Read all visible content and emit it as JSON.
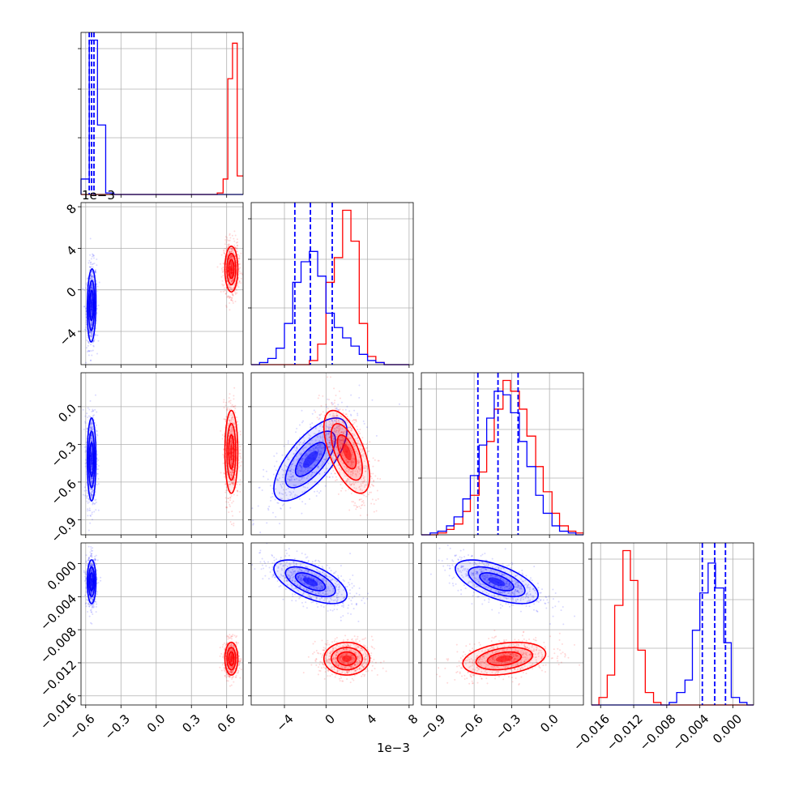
{
  "figure": {
    "type": "corner-plot",
    "series_colors": {
      "blue": "#0000ff",
      "red": "#ff0000"
    },
    "offset_labels": {
      "x_param2": "1e−3",
      "y_param2": "1e−3"
    }
  },
  "chart_data": {
    "type": "corner",
    "parameters": [
      {
        "index": 0,
        "ticks": [
          -0.6,
          -0.3,
          0.0,
          0.3,
          0.6
        ],
        "tick_labels": [
          "−0.6",
          "−0.3",
          "0.0",
          "0.3",
          "0.6"
        ],
        "range": [
          -0.64,
          0.74
        ]
      },
      {
        "index": 1,
        "ticks": [
          -4,
          0,
          4,
          8
        ],
        "tick_labels": [
          "−4",
          "0",
          "4",
          "8"
        ],
        "range": [
          -7.2,
          8.4
        ],
        "scale": "1e-3"
      },
      {
        "index": 2,
        "ticks": [
          -0.9,
          -0.6,
          -0.3,
          0.0
        ],
        "tick_labels": [
          "−0.9",
          "−0.6",
          "−0.3",
          "0.0"
        ],
        "range": [
          -1.02,
          0.27
        ]
      },
      {
        "index": 3,
        "ticks": [
          -0.016,
          -0.012,
          -0.008,
          -0.004,
          0.0
        ],
        "tick_labels": [
          "−0.016",
          "−0.012",
          "−0.008",
          "−0.004",
          "0.000"
        ],
        "range": [
          -0.0171,
          0.0025
        ]
      }
    ],
    "series": [
      {
        "color": "#0000ff",
        "means": [
          -0.55,
          -1.5,
          -0.42,
          -0.0022
        ],
        "sds": [
          0.017,
          1.6,
          0.15,
          0.0012
        ],
        "correlations": {
          "1-2": 0.7,
          "2-3": -0.6,
          "1-3": -0.6,
          "0-1": 0.1,
          "0-2": 0.0,
          "0-3": 0.0
        },
        "quantiles": {
          "0": [
            -0.57,
            -0.55,
            -0.53
          ],
          "1": [
            -3.0,
            -1.5,
            0.6
          ],
          "2": [
            -0.57,
            -0.41,
            -0.25
          ],
          "3": [
            -0.0037,
            -0.0022,
            -0.0009
          ]
        }
      },
      {
        "color": "#ff0000",
        "means": [
          0.64,
          2.0,
          -0.36,
          -0.0115
        ],
        "sds": [
          0.025,
          1.0,
          0.15,
          0.0009
        ],
        "correlations": {
          "1-2": -0.6,
          "2-3": 0.3,
          "1-3": 0.0,
          "0-1": 0.0,
          "0-2": 0.0,
          "0-3": 0.0
        },
        "quantiles": null
      }
    ],
    "diagonal_hist": {
      "0": {
        "bin_edges": [
          -0.64,
          -0.57,
          -0.5,
          -0.43,
          -0.36,
          -0.29,
          -0.22,
          -0.15,
          -0.08,
          -0.01,
          0.06,
          0.13,
          0.2,
          0.27,
          0.34,
          0.41,
          0.48,
          0.55,
          0.62,
          0.67,
          0.74
        ],
        "blue": [
          10,
          100,
          45,
          1,
          0,
          0,
          0,
          0,
          0,
          0,
          0,
          0,
          0,
          0,
          0,
          0,
          0,
          0,
          0,
          0
        ],
        "red": [
          0,
          0,
          0,
          0,
          0,
          0,
          0,
          0,
          0,
          0,
          0,
          0,
          0,
          0,
          0,
          0,
          0,
          1,
          10,
          75,
          98,
          12
        ],
        "red_edges": [
          -0.64,
          -0.57,
          -0.5,
          -0.43,
          -0.36,
          -0.29,
          -0.22,
          -0.15,
          -0.08,
          -0.01,
          0.06,
          0.13,
          0.2,
          0.27,
          0.34,
          0.41,
          0.48,
          0.52,
          0.57,
          0.61,
          0.65,
          0.69,
          0.74
        ]
      },
      "1": {
        "bin_edges": [
          -7.2,
          -6.4,
          -5.6,
          -4.8,
          -4.0,
          -3.2,
          -2.4,
          -1.6,
          -0.8,
          0.0,
          0.8,
          1.6,
          2.4,
          3.2,
          4.0,
          4.8,
          5.6,
          6.4,
          7.2,
          8.0
        ],
        "blue": [
          0,
          1,
          3,
          8,
          20,
          40,
          50,
          55,
          43,
          25,
          18,
          13,
          9,
          5,
          2,
          1,
          0,
          0,
          0
        ],
        "red": [
          0,
          0,
          0,
          0,
          0,
          0,
          0,
          2,
          10,
          40,
          52,
          75,
          60,
          20,
          4,
          1,
          0,
          0,
          0
        ]
      },
      "2": {
        "bin_edges": [
          -1.02,
          -0.95,
          -0.89,
          -0.82,
          -0.76,
          -0.69,
          -0.63,
          -0.56,
          -0.5,
          -0.44,
          -0.37,
          -0.31,
          -0.24,
          -0.18,
          -0.11,
          -0.05,
          0.02,
          0.08,
          0.15,
          0.21,
          0.27
        ],
        "blue": [
          0,
          1,
          2,
          5,
          10,
          20,
          33,
          50,
          65,
          80,
          78,
          68,
          52,
          38,
          22,
          12,
          5,
          2,
          1,
          0
        ],
        "red": [
          0,
          0,
          1,
          3,
          6,
          13,
          22,
          35,
          52,
          70,
          86,
          80,
          70,
          55,
          38,
          24,
          12,
          5,
          2,
          1
        ]
      },
      "3": {
        "bin_edges": [
          -0.0171,
          -0.0162,
          -0.0152,
          -0.0143,
          -0.0133,
          -0.0124,
          -0.0115,
          -0.0106,
          -0.0096,
          -0.0087,
          -0.0077,
          -0.0068,
          -0.0058,
          -0.0049,
          -0.004,
          -0.003,
          -0.0021,
          -0.0011,
          -0.0002,
          0.0008,
          0.0017,
          0.0025
        ],
        "blue": [
          0,
          0,
          0,
          0,
          0,
          0,
          0,
          0,
          0,
          0,
          1,
          5,
          10,
          30,
          45,
          57,
          47,
          25,
          3,
          1,
          0
        ],
        "red": [
          0,
          3,
          12,
          40,
          62,
          50,
          22,
          5,
          1,
          0,
          0,
          0,
          0,
          0,
          0,
          0,
          0,
          0,
          0,
          0,
          0
        ]
      }
    },
    "grid": true
  }
}
